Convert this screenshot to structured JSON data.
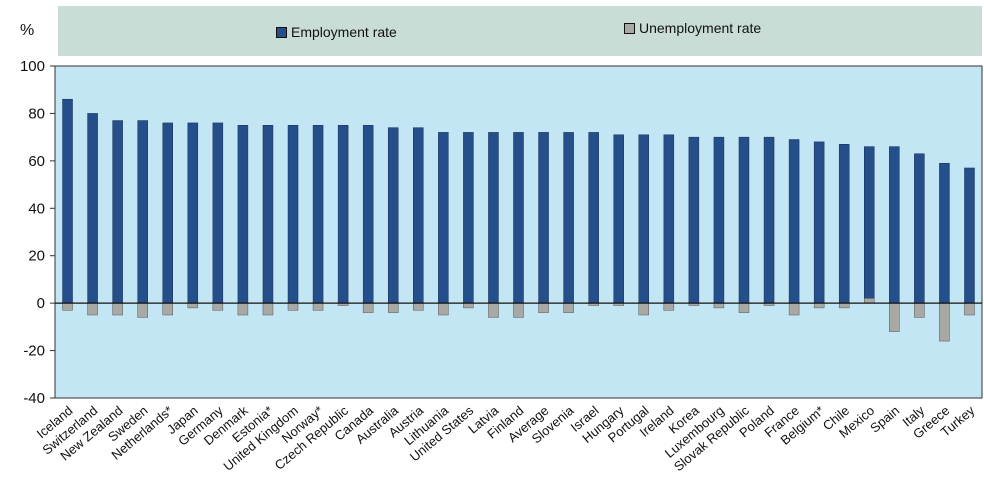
{
  "chart_data": {
    "type": "bar",
    "unit_label": "%",
    "legend": {
      "employment_label": "Employment rate",
      "unemployment_label": "Unemployment rate",
      "placement": "top"
    },
    "categories": [
      "Iceland",
      "Switzerland",
      "New Zealand",
      "Sweden",
      "Netherlands*",
      "Japan",
      "Germany",
      "Denmark",
      "Estonia*",
      "United Kingdom",
      "Norway*",
      "Czech Republic",
      "Canada",
      "Australia",
      "Austria",
      "Lithuania",
      "United States",
      "Latvia",
      "Finland",
      "Average",
      "Slovenia",
      "Israel",
      "Hungary",
      "Portugal",
      "Ireland",
      "Korea",
      "Luxembourg",
      "Slovak Republic",
      "Poland",
      "France",
      "Belgium*",
      "Chile",
      "Mexico",
      "Spain",
      "Italy",
      "Greece",
      "Turkey"
    ],
    "series": [
      {
        "name": "Employment rate",
        "values": [
          86,
          80,
          77,
          77,
          76,
          76,
          76,
          75,
          75,
          75,
          75,
          75,
          75,
          74,
          74,
          72,
          72,
          72,
          72,
          72,
          72,
          72,
          71,
          71,
          71,
          70,
          70,
          70,
          70,
          69,
          68,
          67,
          66,
          66,
          63,
          59,
          57
        ]
      },
      {
        "name": "Unemployment rate",
        "values": [
          -3,
          -5,
          -5,
          -6,
          -5,
          -2,
          -3,
          -5,
          -5,
          -3,
          -3,
          -1,
          -4,
          -4,
          -3,
          -5,
          -2,
          -6,
          -6,
          -4,
          -4,
          -1,
          -1,
          -5,
          -3,
          -1,
          -2,
          -4,
          -1,
          -5,
          -2,
          -2,
          2,
          -12,
          -6,
          -16,
          -5
        ]
      }
    ],
    "ylim": [
      -40,
      100
    ],
    "yticks": [
      -40,
      -20,
      0,
      20,
      40,
      60,
      80,
      100
    ],
    "colors": {
      "employment": "#244f8a",
      "unemployment": "#a8a9a4",
      "plot_background": "#c3e6f4",
      "legend_background": "#c9dcd6"
    },
    "grid": false
  }
}
